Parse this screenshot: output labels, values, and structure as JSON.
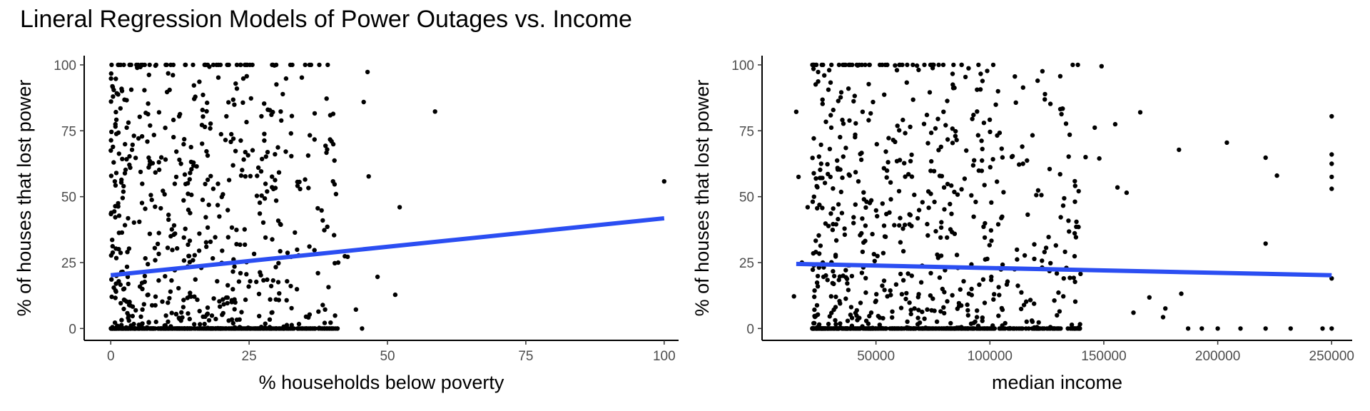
{
  "title": "Lineral Regression Models of Power Outages vs. Income",
  "colors": {
    "fit_line": "#2B4EF2",
    "points": "#000000"
  },
  "chart_data": [
    {
      "type": "scatter",
      "xlabel": "% households below poverty",
      "ylabel": "% of houses that lost power",
      "xlim": [
        -4.8,
        102.6
      ],
      "ylim": [
        -4.5,
        103.5
      ],
      "x_ticks": [
        0,
        25,
        50,
        75,
        100
      ],
      "y_ticks": [
        0,
        25,
        50,
        75,
        100
      ],
      "x_tick_labels": [
        "0",
        "25",
        "50",
        "75",
        "100"
      ],
      "y_tick_labels": [
        "0",
        "25",
        "50",
        "75",
        "100"
      ],
      "regression": {
        "x": [
          0,
          100
        ],
        "y": [
          20.2,
          41.8
        ]
      },
      "point_sampling": {
        "n": 1000,
        "seed": 17,
        "x_max": 41,
        "zero_y_share": 0.42,
        "x_mode": "poverty"
      },
      "points": [
        [
          39.2,
          100
        ],
        [
          46.4,
          97.3
        ],
        [
          58.6,
          82.3
        ],
        [
          45.7,
          85.9
        ],
        [
          100,
          55.8
        ],
        [
          46.6,
          57.7
        ],
        [
          52.2,
          46
        ],
        [
          51.4,
          12.8
        ],
        [
          48.2,
          19.6
        ],
        [
          44.3,
          7.2
        ],
        [
          45.4,
          0
        ],
        [
          40.7,
          51
        ],
        [
          39.9,
          71
        ],
        [
          38.8,
          69.3
        ],
        [
          37.4,
          45.6
        ],
        [
          38.1,
          44.8
        ],
        [
          38.3,
          41
        ],
        [
          41.1,
          25
        ],
        [
          42.3,
          27.4
        ],
        [
          42.8,
          27.2
        ]
      ]
    },
    {
      "type": "scatter",
      "xlabel": "median income",
      "ylabel": "% of houses that lost power",
      "xlim": [
        0,
        259000
      ],
      "ylim": [
        -4.5,
        103.5
      ],
      "x_ticks": [
        50000,
        100000,
        150000,
        200000,
        250000
      ],
      "y_ticks": [
        0,
        25,
        50,
        75,
        100
      ],
      "x_tick_labels": [
        "50000",
        "100000",
        "150000",
        "200000",
        "250000"
      ],
      "y_tick_labels": [
        "0",
        "25",
        "50",
        "75",
        "100"
      ],
      "regression": {
        "x": [
          15000,
          250000
        ],
        "y": [
          24.5,
          20.2
        ]
      },
      "point_sampling": {
        "n": 1000,
        "seed": 29,
        "x_max": 140000,
        "zero_y_share": 0.42,
        "x_mode": "income"
      },
      "points": [
        [
          250000,
          80.5
        ],
        [
          250000,
          66
        ],
        [
          250000,
          62.5
        ],
        [
          250000,
          57.5
        ],
        [
          250000,
          53
        ],
        [
          250000,
          19
        ],
        [
          250000,
          0
        ],
        [
          246000,
          0
        ],
        [
          232000,
          0
        ],
        [
          221000,
          0
        ],
        [
          210000,
          0
        ],
        [
          200000,
          0
        ],
        [
          193000,
          0
        ],
        [
          187000,
          0
        ],
        [
          221000,
          64.8
        ],
        [
          226000,
          58
        ],
        [
          221000,
          32.2
        ],
        [
          204000,
          70.5
        ],
        [
          183000,
          67.8
        ],
        [
          184000,
          13.2
        ],
        [
          177000,
          7.6
        ],
        [
          176000,
          4.3
        ],
        [
          170000,
          11.8
        ],
        [
          166000,
          82
        ],
        [
          163000,
          6
        ],
        [
          160000,
          51.5
        ],
        [
          156000,
          53.5
        ],
        [
          155000,
          77.5
        ],
        [
          149000,
          99.5
        ],
        [
          148000,
          64.5
        ],
        [
          146000,
          76.2
        ],
        [
          142000,
          65
        ],
        [
          138000,
          40.5
        ],
        [
          135000,
          73.5
        ],
        [
          15000,
          82.2
        ],
        [
          16000,
          57.5
        ],
        [
          14000,
          12.2
        ],
        [
          17500,
          25
        ],
        [
          20000,
          46
        ],
        [
          24000,
          54
        ]
      ]
    }
  ]
}
